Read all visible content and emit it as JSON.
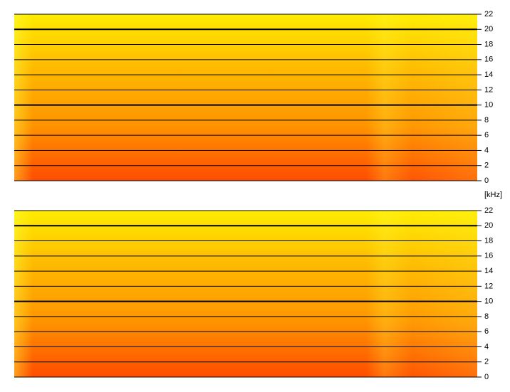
{
  "chart_data": [
    {
      "type": "spectrogram",
      "ylabel": "[kHz]",
      "ylim": [
        0,
        22
      ],
      "yticks": [
        0,
        2,
        4,
        6,
        8,
        10,
        12,
        14,
        16,
        18,
        20,
        22
      ],
      "grid": true,
      "colormap": [
        "#ffec00",
        "#ffb800",
        "#ff9400",
        "#ff4c00"
      ]
    },
    {
      "type": "spectrogram",
      "ylim": [
        0,
        22
      ],
      "yticks": [
        0,
        2,
        4,
        6,
        8,
        10,
        12,
        14,
        16,
        18,
        20,
        22
      ],
      "grid": true,
      "colormap": [
        "#ffec00",
        "#ffb800",
        "#ff9400",
        "#ff4c00"
      ]
    }
  ]
}
